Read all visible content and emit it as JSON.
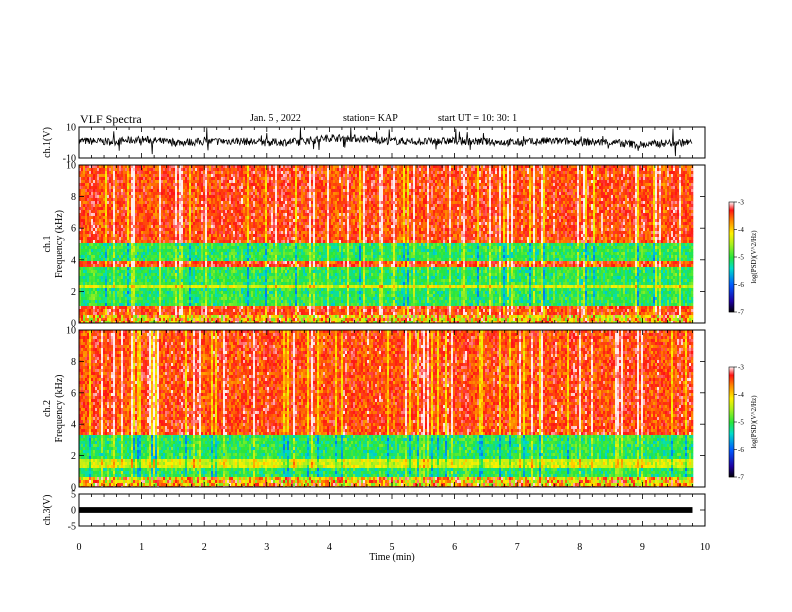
{
  "header": {
    "title": "VLF Spectra",
    "date": "Jan. 5 , 2022",
    "station": "station= KAP",
    "start": "start UT = 10: 30: 1"
  },
  "chart_data": [
    {
      "type": "line",
      "panel": "ch1-waveform",
      "ylabel": "ch.1(V)",
      "ylim": [
        -10,
        10
      ],
      "y_ticklabels": [
        "10",
        "-10"
      ],
      "xlim": [
        0,
        10
      ],
      "trace_color": "#000000",
      "x": [
        0,
        0.5,
        1,
        1.5,
        2,
        2.5,
        3,
        3.5,
        4,
        4.5,
        5,
        5.5,
        6,
        6.5,
        7,
        7.5,
        8,
        8.5,
        9,
        9.5,
        9.8
      ],
      "y": [
        1,
        0.5,
        2,
        0,
        0.5,
        1,
        0,
        0.5,
        3,
        2.5,
        1,
        0.5,
        1,
        0.5,
        0,
        1,
        0.5,
        0,
        -1.5,
        0,
        0
      ]
    },
    {
      "type": "heatmap",
      "panel": "ch1-spectrogram",
      "ylabel": "ch.1 Frequency (kHz)",
      "ylim": [
        0,
        10
      ],
      "y_ticklabels": [
        "0",
        "2",
        "4",
        "6",
        "8",
        "10"
      ],
      "xlim": [
        0,
        10
      ],
      "data_xmax": 9.8,
      "bands_khz": [
        {
          "from": 0,
          "to": 0.6,
          "level": "mixed"
        },
        {
          "from": 0.6,
          "to": 1.0,
          "level": "red"
        },
        {
          "from": 1.0,
          "to": 2.2,
          "level": "green"
        },
        {
          "from": 2.2,
          "to": 2.5,
          "level": "yellow"
        },
        {
          "from": 2.5,
          "to": 3.6,
          "level": "green"
        },
        {
          "from": 3.6,
          "to": 4.0,
          "level": "red"
        },
        {
          "from": 4.0,
          "to": 5.0,
          "level": "green"
        },
        {
          "from": 5.0,
          "to": 10,
          "level": "red"
        }
      ],
      "colorbar": {
        "label": "log(PSD)(V^2/Hz)",
        "range": [
          -7,
          -3
        ],
        "ticks": [
          "-3",
          "-4",
          "-5",
          "-6",
          "-7"
        ]
      }
    },
    {
      "type": "heatmap",
      "panel": "ch2-spectrogram",
      "ylabel": "ch.2 Frequency (kHz)",
      "ylim": [
        0,
        10
      ],
      "y_ticklabels": [
        "0",
        "2",
        "4",
        "6",
        "8",
        "10"
      ],
      "xlim": [
        0,
        10
      ],
      "data_xmax": 9.8,
      "bands_khz": [
        {
          "from": 0,
          "to": 0.6,
          "level": "mixed"
        },
        {
          "from": 0.6,
          "to": 1.2,
          "level": "green"
        },
        {
          "from": 1.2,
          "to": 1.8,
          "level": "yellow"
        },
        {
          "from": 1.8,
          "to": 3.3,
          "level": "green"
        },
        {
          "from": 3.3,
          "to": 10,
          "level": "red"
        }
      ],
      "colorbar": {
        "label": "log(PSD)(V^2/Hz)",
        "range": [
          -7,
          -3
        ],
        "ticks": [
          "-3",
          "-4",
          "-5",
          "-6",
          "-7"
        ]
      }
    },
    {
      "type": "line",
      "panel": "ch3-waveform",
      "ylabel": "ch.3(V)",
      "ylim": [
        -5,
        5
      ],
      "y_ticklabels": [
        "5",
        "0",
        "-5"
      ],
      "xlim": [
        0,
        10
      ],
      "trace_color": "#000000",
      "x": [
        0,
        9.8
      ],
      "y": [
        0,
        0
      ]
    }
  ],
  "x_axis": {
    "label": "Time (min)",
    "ticklabels": [
      "0",
      "1",
      "2",
      "3",
      "4",
      "5",
      "6",
      "7",
      "8",
      "9",
      "10"
    ]
  }
}
